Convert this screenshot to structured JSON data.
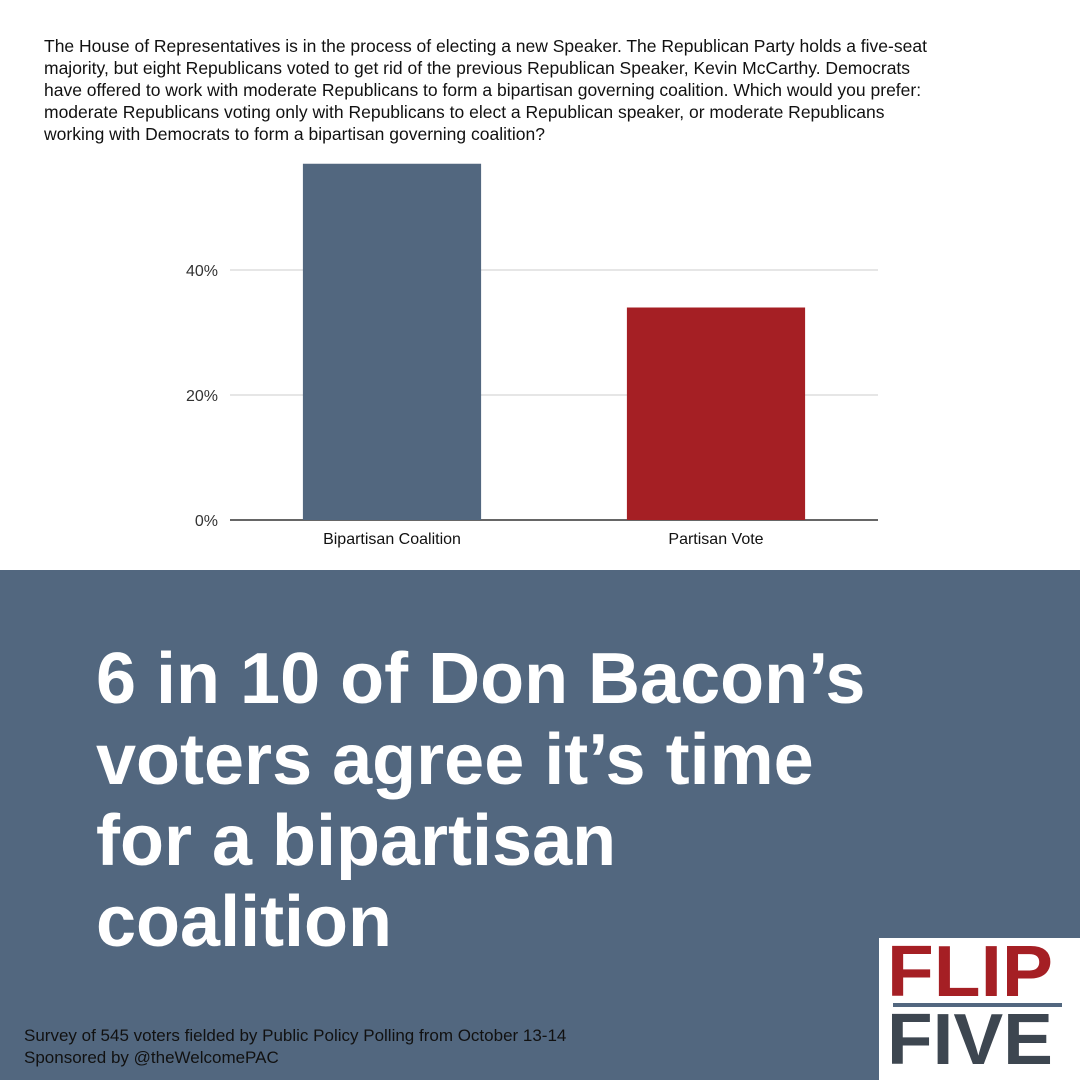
{
  "question": [
    "The House of Representatives is in the process of electing a new Speaker. The Republican Party holds a five-seat",
    "majority, but eight Republicans voted to get rid of the previous Republican Speaker, Kevin McCarthy. Democrats",
    "have offered to work with moderate Republicans to form a bipartisan governing coalition. Which would you prefer:",
    "moderate Republicans voting only with Republicans to elect a Republican speaker, or moderate Republicans",
    "working with Democrats to form a bipartisan governing coalition?"
  ],
  "chart_data": {
    "type": "bar",
    "categories": [
      "Bipartisan Coalition",
      "Partisan Vote"
    ],
    "values": [
      57,
      34
    ],
    "colors": [
      "#52677f",
      "#a51f24"
    ],
    "ylim": [
      0,
      60
    ],
    "yticks": [
      {
        "value": 0,
        "label": "0%"
      },
      {
        "value": 20,
        "label": "20%"
      },
      {
        "value": 40,
        "label": "40%"
      }
    ],
    "grid": true
  },
  "headline": [
    "6 in 10 of Don Bacon’s",
    "voters agree it’s time",
    "for a bipartisan",
    "coalition"
  ],
  "footer": [
    "Survey of 545 voters fielded by Public Policy Polling from October 13-14",
    "Sponsored by @theWelcomePAC"
  ],
  "logo": [
    "FLIP",
    "FIVE"
  ]
}
